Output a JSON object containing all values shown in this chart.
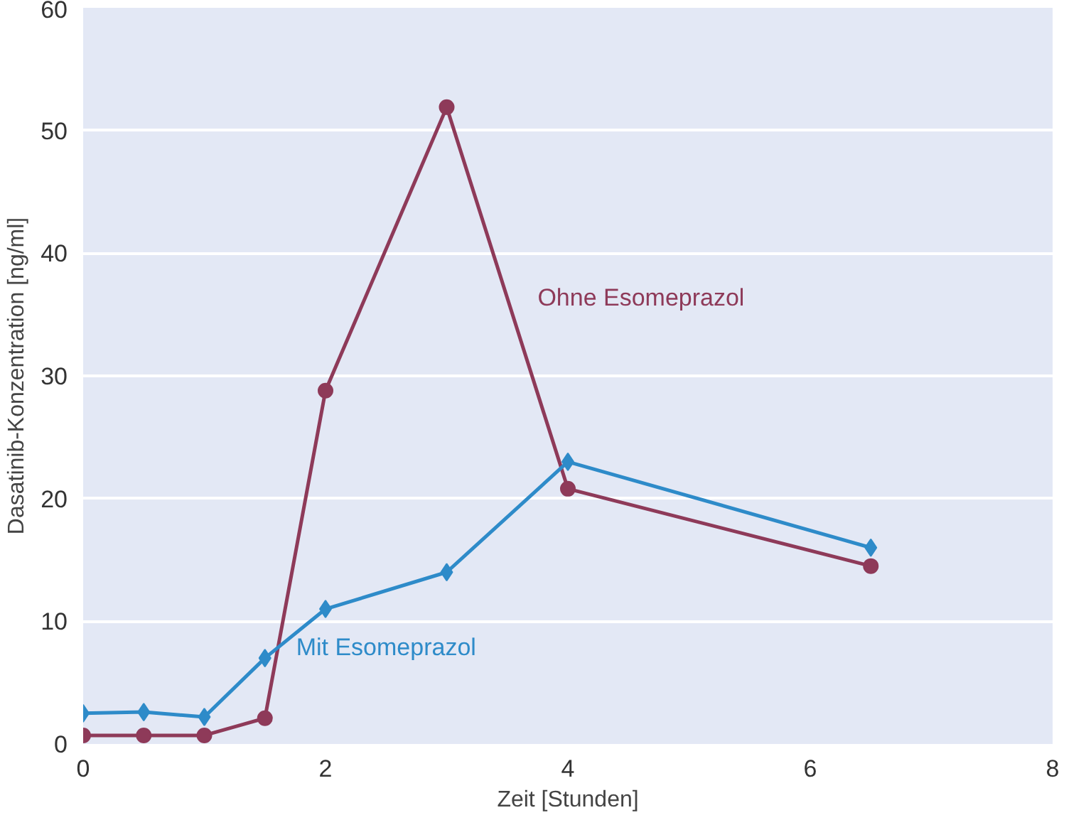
{
  "chart_data": {
    "type": "line",
    "xlabel": "Zeit [Stunden]",
    "ylabel": "Dasatinib-Konzentration [ng/ml]",
    "x": [
      0,
      0.5,
      1,
      1.5,
      2,
      3,
      4,
      6.5
    ],
    "series": [
      {
        "name": "Ohne Esomeprazol",
        "color": "#8e3a59",
        "marker": "circle",
        "values": [
          0.7,
          0.7,
          0.7,
          2.1,
          28.8,
          51.9,
          20.8,
          14.5
        ]
      },
      {
        "name": "Mit Esomeprazol",
        "color": "#2e8bc9",
        "marker": "diamond",
        "values": [
          2.5,
          2.6,
          2.2,
          7.0,
          11.0,
          14.0,
          23.0,
          16.0
        ]
      }
    ],
    "xlim": [
      0,
      8
    ],
    "ylim": [
      0,
      60
    ],
    "xticks": [
      0,
      2,
      4,
      6,
      8
    ],
    "yticks": [
      0,
      10,
      20,
      30,
      40,
      50,
      60
    ],
    "grid": "y",
    "line_style": "solid"
  }
}
